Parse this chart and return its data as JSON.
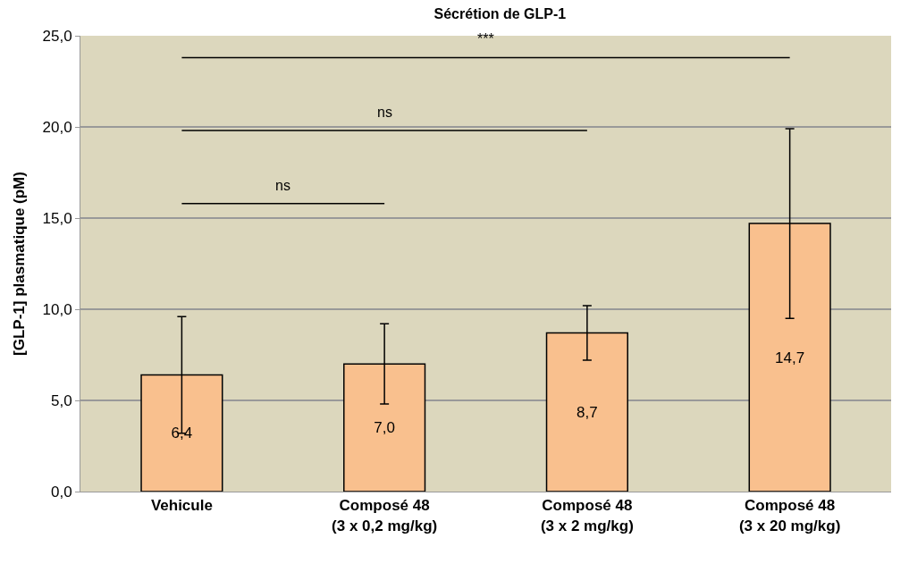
{
  "chart_data": {
    "type": "bar",
    "title": "Sécrétion de GLP-1",
    "ylabel": "[GLP-1] plasmatique (pM)",
    "categories": [
      "Vehicule",
      "Composé 48\n(3 x 0,2 mg/kg)",
      "Composé 48\n(3 x 2 mg/kg)",
      "Composé 48\n(3 x 20 mg/kg)"
    ],
    "values": [
      6.4,
      7.0,
      8.7,
      14.7
    ],
    "value_labels": [
      "6,4",
      "7,0",
      "8,7",
      "14,7"
    ],
    "errors": [
      3.2,
      2.2,
      1.5,
      5.2
    ],
    "color": "#f9c08e",
    "ylim": [
      0,
      25
    ],
    "yticks": [
      {
        "value": 0,
        "label": "0,0"
      },
      {
        "value": 5,
        "label": "5,0"
      },
      {
        "value": 10,
        "label": "10,0"
      },
      {
        "value": 15,
        "label": "15,0"
      },
      {
        "value": 20,
        "label": "20,0"
      },
      {
        "value": 25,
        "label": "25,0"
      }
    ],
    "grid": "y",
    "annotations": [
      "ns",
      "ns",
      "***"
    ]
  }
}
